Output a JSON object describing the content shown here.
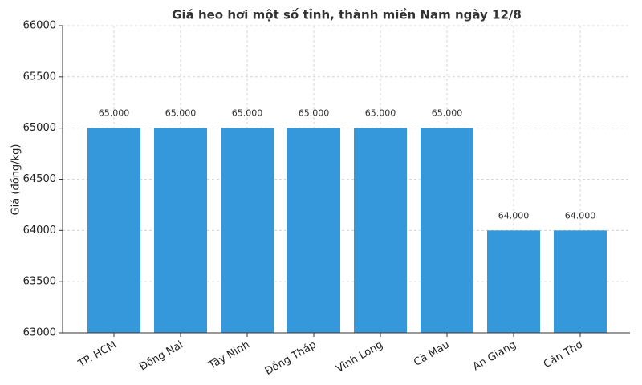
{
  "chart_data": {
    "type": "bar",
    "title": "Giá heo hơi một số tỉnh, thành miền Nam ngày 12/8",
    "y_label": "Giá (đồng/kg)",
    "categories": [
      "TP. HCM",
      "Đồng Nai",
      "Tây Ninh",
      "Đồng Tháp",
      "Vĩnh Long",
      "Cà Mau",
      "An Giang",
      "Cần Thơ"
    ],
    "values": [
      65000,
      65000,
      65000,
      65000,
      65000,
      65000,
      64000,
      64000
    ],
    "value_labels": [
      "65.000",
      "65.000",
      "65.000",
      "65.000",
      "65.000",
      "65.000",
      "64.000",
      "64.000"
    ],
    "color": "#3498db",
    "ylim": [
      63000,
      66000
    ],
    "yticks": [
      63000,
      63500,
      64000,
      64500,
      65000,
      65500,
      66000
    ],
    "grid": true
  }
}
